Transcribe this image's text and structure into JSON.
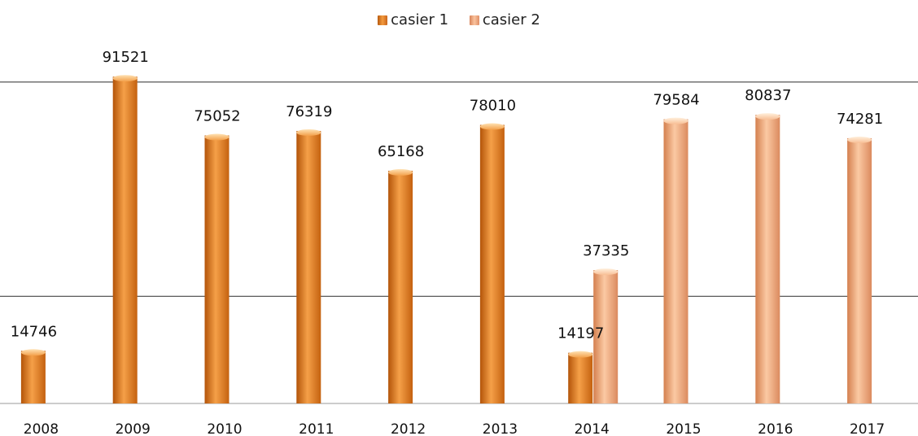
{
  "chart_data": {
    "type": "bar",
    "title": "",
    "xlabel": "",
    "ylabel": "",
    "categories": [
      "2008",
      "2009",
      "2010",
      "2011",
      "2012",
      "2013",
      "2014",
      "2015",
      "2016",
      "2017"
    ],
    "series": [
      {
        "name": "casier 1",
        "color": "#E8801F",
        "values": [
          14746,
          91521,
          75052,
          76319,
          65168,
          78010,
          14197,
          null,
          null,
          null
        ]
      },
      {
        "name": "casier 2",
        "color": "#F2A577",
        "values": [
          null,
          null,
          null,
          null,
          null,
          null,
          37335,
          79584,
          80837,
          74281
        ]
      }
    ],
    "ylim": [
      0,
      100000
    ],
    "gridlines": [
      30000,
      90000
    ],
    "legend": "top-center",
    "grid": true
  }
}
